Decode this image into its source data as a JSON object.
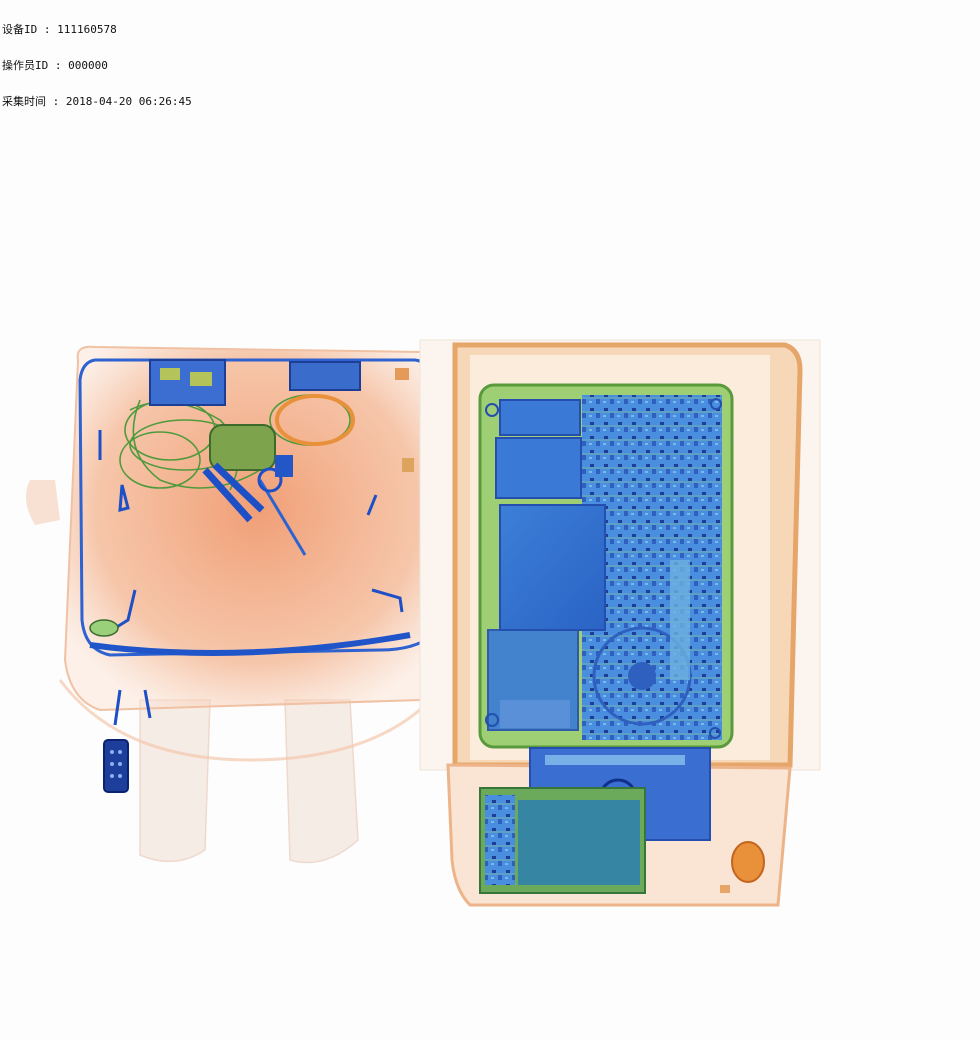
{
  "overlay": {
    "device_label": "设备ID",
    "device_value": "111160578",
    "operator_label": "操作员ID",
    "operator_value": "000000",
    "time_label": "采集时间",
    "time_value": "2018-04-20 06:26:45",
    "separator": " : "
  },
  "colors": {
    "organic": "#f0a070",
    "inorganic_dense": "#1f5fd6",
    "mixed": "#8cc870",
    "background": "#fdfdfd"
  }
}
